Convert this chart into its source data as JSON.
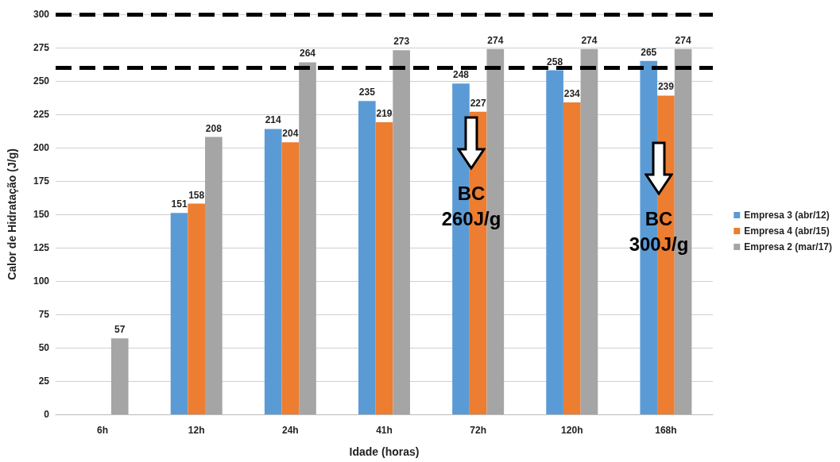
{
  "chart_data": {
    "type": "bar",
    "xlabel": "Idade (horas)",
    "ylabel": "Calor de Hidratação (J/g)",
    "categories": [
      "6h",
      "12h",
      "24h",
      "41h",
      "72h",
      "120h",
      "168h"
    ],
    "series": [
      {
        "name": "Empresa 3 (abr/12)",
        "color": "#5b9bd5",
        "values": [
          null,
          151,
          214,
          235,
          248,
          258,
          265
        ]
      },
      {
        "name": "Empresa 4 (abr/15)",
        "color": "#ed7d31",
        "values": [
          null,
          158,
          204,
          219,
          227,
          234,
          239
        ]
      },
      {
        "name": "Empresa 2 (mar/17)",
        "color": "#a5a5a5",
        "values": [
          57,
          208,
          264,
          273,
          274,
          274,
          274
        ]
      }
    ],
    "ylim": [
      0,
      300
    ],
    "yticks": [
      0,
      25,
      50,
      75,
      100,
      125,
      150,
      175,
      200,
      225,
      250,
      275,
      300
    ],
    "grid": "y",
    "legend": "right",
    "data_labels": true,
    "ref_lines": [
      {
        "axis": "y",
        "value": 260,
        "color": "#000000",
        "line_style": "dashed"
      },
      {
        "axis": "y",
        "value": 300,
        "color": "#000000",
        "line_style": "dashed"
      }
    ],
    "annotations": [
      "BC\n260J/g",
      "BC\n300J/g"
    ]
  }
}
